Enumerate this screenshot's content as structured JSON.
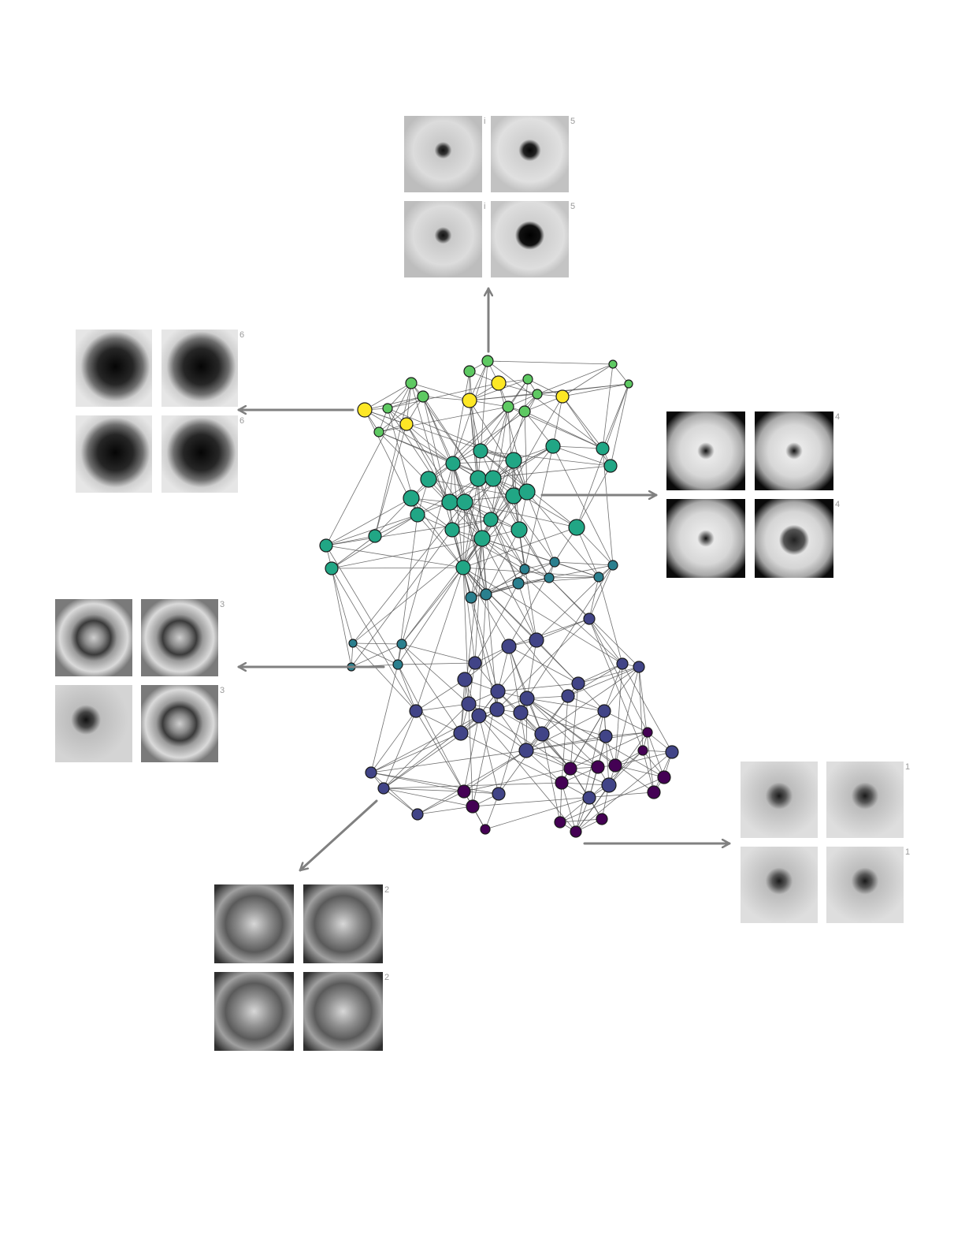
{
  "colors": {
    "edge": "#555555",
    "node_stroke": "#1a1a1a",
    "arrow": "#808080",
    "tile_label": "#9a9a9a",
    "palette": {
      "yellow": "#fde725",
      "lightgreen": "#5ec962",
      "teal": "#21a685",
      "cyan": "#2a7f8e",
      "blue": "#414487",
      "purple": "#440154"
    }
  },
  "groups": [
    {
      "id": "top",
      "labels": [
        "i",
        "5",
        "i",
        "5"
      ],
      "tiles": [
        "tile-small-dark-dot",
        "tile-dark-dot",
        "tile-small-dark-dot",
        "tile-large-dark-dot"
      ]
    },
    {
      "id": "upper-left",
      "labels": [
        "",
        "6",
        "",
        "6"
      ],
      "tiles": [
        "tile-large-dark-lesion",
        "tile-large-dark-lesion",
        "tile-large-dark-lesion",
        "tile-large-dark-lesion"
      ]
    },
    {
      "id": "right",
      "labels": [
        "",
        "4",
        "",
        "4"
      ],
      "tiles": [
        "tile-vignette-dot",
        "tile-vignette-dot",
        "tile-vignette-dot",
        "tile-vignette-lesion"
      ]
    },
    {
      "id": "middle-left",
      "labels": [
        "",
        "3",
        "",
        "3"
      ],
      "tiles": [
        "tile-ring-lesion",
        "tile-ring-lesion",
        "tile-small-lesion",
        "tile-ring-lesion"
      ]
    },
    {
      "id": "bottom-left",
      "labels": [
        "",
        "2",
        "",
        "2"
      ],
      "tiles": [
        "tile-mottled",
        "tile-mottled",
        "tile-mottled",
        "tile-mottled"
      ]
    },
    {
      "id": "bottom-right",
      "labels": [
        "",
        "1",
        "",
        "1"
      ],
      "tiles": [
        "tile-faint-lesion",
        "tile-faint-lesion",
        "tile-faint-lesion",
        "tile-faint-lesion"
      ]
    }
  ]
}
